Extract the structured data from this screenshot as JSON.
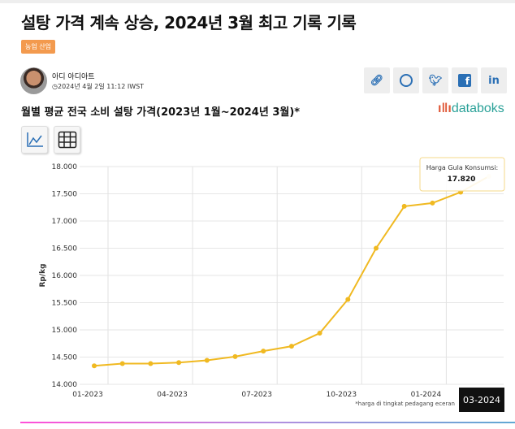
{
  "article": {
    "title": "설탕 가격 계속 상승, 2024년 3월 최고 기록 기록",
    "tag": "농업 산업",
    "author": "아디 아디아트",
    "date": "2024년 4월 2일 11:12 IWST"
  },
  "share": {
    "items": [
      "link-icon",
      "whatsapp-icon",
      "twitter-icon",
      "facebook-icon",
      "linkedin-icon"
    ],
    "linkedin_label": "in",
    "facebook_label": "f"
  },
  "logo": "databoks",
  "colors": {
    "line": "#f0b921",
    "tag": "#f39a4e",
    "accent": "#2a6fb5"
  },
  "chart_data": {
    "type": "line",
    "title": "월별 평균 전국 소비 설탕 가격(2023년 1월~2024년 3월)*",
    "ylabel": "Rp/kg",
    "ylim": [
      14000,
      18000
    ],
    "yticks": [
      "14.000",
      "14.500",
      "15.000",
      "15.500",
      "16.000",
      "16.500",
      "17.000",
      "17.500",
      "18.000"
    ],
    "xticks": [
      "01-2023",
      "04-2023",
      "07-2023",
      "10-2023",
      "01-2024"
    ],
    "x": [
      "01-2023",
      "02-2023",
      "03-2023",
      "04-2023",
      "05-2023",
      "06-2023",
      "07-2023",
      "08-2023",
      "09-2023",
      "10-2023",
      "11-2023",
      "12-2023",
      "01-2024",
      "02-2024",
      "03-2024"
    ],
    "series": [
      {
        "name": "Harga Gula Konsumsi",
        "values": [
          14340,
          14380,
          14380,
          14400,
          14440,
          14510,
          14610,
          14700,
          14940,
          15560,
          16500,
          17270,
          17330,
          17530,
          17820
        ]
      }
    ],
    "grid": true,
    "footnote": "*harga di tingkat pedagang eceran",
    "tooltip": {
      "label": "Harga Gula Konsumsi:",
      "value": "17.820",
      "x": "03-2024"
    }
  }
}
